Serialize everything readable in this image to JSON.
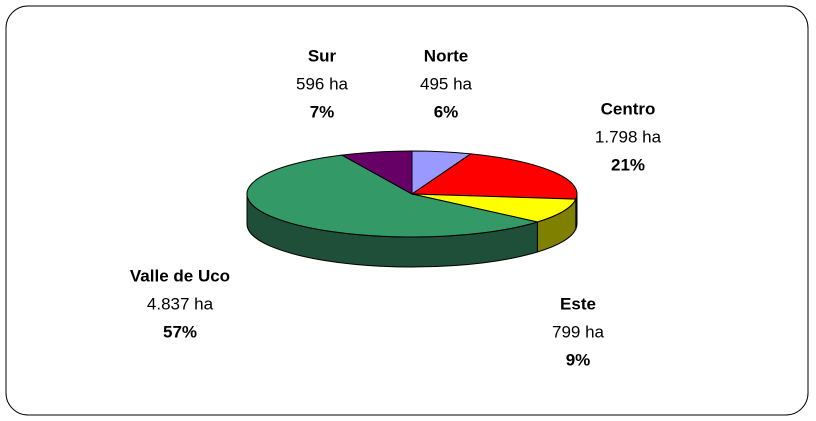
{
  "chart_data": {
    "type": "pie",
    "categories": [
      "Norte",
      "Centro",
      "Este",
      "Valle de Uco",
      "Sur"
    ],
    "values": [
      495,
      1798,
      799,
      4837,
      596
    ],
    "value_labels": [
      "495 ha",
      "1.798 ha",
      "799 ha",
      "4.837 ha",
      "596 ha"
    ],
    "percentages": [
      6,
      21,
      9,
      57,
      7
    ],
    "percentage_labels": [
      "6%",
      "21%",
      "9%",
      "57%",
      "7%"
    ],
    "colors": [
      "#9999ff",
      "#ff0000",
      "#ffff00",
      "#339966",
      "#660066"
    ],
    "side_colors": [
      "#6b6bb3",
      "#800000",
      "#808000",
      "#1f4f38",
      "#33003a"
    ]
  }
}
